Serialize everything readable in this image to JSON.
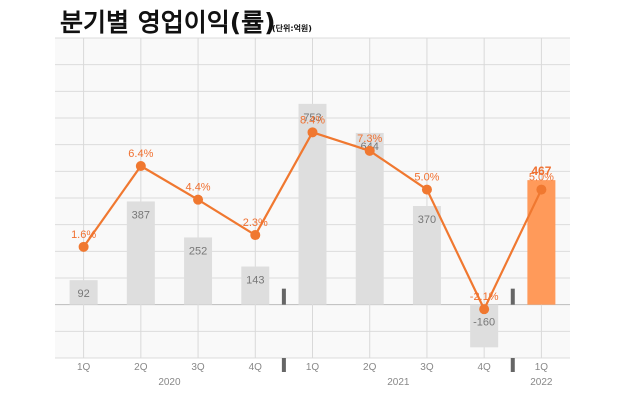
{
  "chart_data": {
    "type": "bar+line",
    "title": "분기별 영업이익(률)",
    "unit": "(단위:억원)",
    "categories": [
      "1Q",
      "2Q",
      "3Q",
      "4Q",
      "1Q",
      "2Q",
      "3Q",
      "4Q",
      "1Q"
    ],
    "years": [
      {
        "label": "2020",
        "from": 0,
        "to": 3
      },
      {
        "label": "2021",
        "from": 4,
        "to": 7
      },
      {
        "label": "2022",
        "from": 8,
        "to": 8
      }
    ],
    "series": [
      {
        "type": "bar",
        "values": [
          92,
          387,
          252,
          143,
          753,
          644,
          370,
          -160,
          467
        ],
        "labels": [
          "92",
          "387",
          "252",
          "143",
          "753",
          "644",
          "370",
          "-160",
          "467"
        ],
        "highlight_index": 8
      },
      {
        "type": "line",
        "values": [
          1.6,
          6.4,
          4.4,
          2.3,
          8.4,
          7.3,
          5.0,
          -2.1,
          5.0
        ],
        "labels": [
          "1.6%",
          "6.4%",
          "4.4%",
          "2.3%",
          "8.4%",
          "7.3%",
          "5.0%",
          "-2.1%",
          "5.0%"
        ]
      }
    ],
    "bar_ylim": [
      -200,
      1000
    ],
    "line_ylim": [
      -5,
      14
    ],
    "grid": true,
    "colors": {
      "bar": "#dedede",
      "bar_highlight": "#ff9a5a",
      "line": "#f07830",
      "label_accent": "#f07030"
    }
  }
}
